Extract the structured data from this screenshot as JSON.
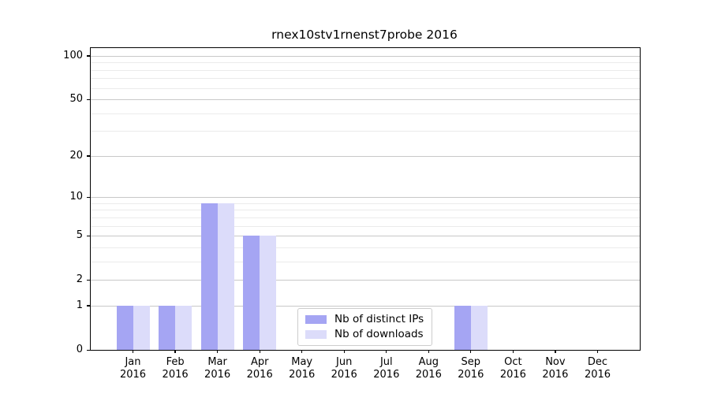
{
  "title": "rnex10stv1rnenst7probe 2016",
  "chart_data": {
    "type": "bar",
    "title": "rnex10stv1rnenst7probe 2016",
    "categories": [
      "Jan 2016",
      "Feb 2016",
      "Mar 2016",
      "Apr 2016",
      "May 2016",
      "Jun 2016",
      "Jul 2016",
      "Aug 2016",
      "Sep 2016",
      "Oct 2016",
      "Nov 2016",
      "Dec 2016"
    ],
    "series": [
      {
        "name": "Nb of distinct IPs",
        "color": "#a5a5f3",
        "values": [
          1,
          1,
          9,
          5,
          0,
          0,
          0,
          0,
          1,
          0,
          0,
          0
        ]
      },
      {
        "name": "Nb of downloads",
        "color": "#dcdcfa",
        "values": [
          1,
          1,
          9,
          5,
          0,
          0,
          0,
          0,
          1,
          0,
          0,
          0
        ]
      }
    ],
    "xlabel": "",
    "ylabel": "",
    "yscale": "log1p",
    "ylim": [
      0,
      113
    ],
    "y_ticks": [
      0,
      1,
      2,
      5,
      10,
      20,
      50,
      100
    ],
    "y_minor_gridlines": [
      3,
      4,
      6,
      7,
      8,
      9,
      30,
      40,
      60,
      70,
      80,
      90
    ],
    "grid": true,
    "legend_position": "lower center"
  }
}
